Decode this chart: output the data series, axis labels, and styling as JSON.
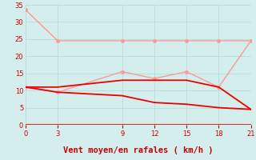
{
  "xlabel": "Vent moyen/en rafales ( km/h )",
  "xlim": [
    0,
    21
  ],
  "ylim": [
    0,
    35
  ],
  "xticks": [
    0,
    3,
    9,
    12,
    15,
    18,
    21
  ],
  "yticks": [
    0,
    5,
    10,
    15,
    20,
    25,
    30,
    35
  ],
  "background_color": "#d4eeed",
  "grid_color": "#b8dcda",
  "lines": [
    {
      "x": [
        0,
        3,
        9,
        12,
        15,
        18,
        21
      ],
      "y": [
        33.5,
        24.5,
        24.5,
        24.5,
        24.5,
        24.5,
        24.5
      ],
      "color": "#ff9999",
      "lw": 1.0,
      "marker": "o",
      "ms": 2.5
    },
    {
      "x": [
        0,
        3,
        9,
        12,
        15,
        18,
        21
      ],
      "y": [
        11,
        9.5,
        15.5,
        13.5,
        15.5,
        11,
        24.5
      ],
      "color": "#ff9999",
      "lw": 1.0,
      "marker": "o",
      "ms": 2.5
    },
    {
      "x": [
        0,
        3,
        9,
        12,
        15,
        18,
        21
      ],
      "y": [
        11,
        11,
        13,
        13,
        13,
        11,
        4.5
      ],
      "color": "#ee0000",
      "lw": 1.3,
      "marker": null,
      "ms": 0
    },
    {
      "x": [
        0,
        3,
        9,
        12,
        15,
        18,
        21
      ],
      "y": [
        11,
        9.5,
        8.5,
        6.5,
        6.0,
        5.0,
        4.5
      ],
      "color": "#ee0000",
      "lw": 1.3,
      "marker": null,
      "ms": 0
    }
  ],
  "tick_color": "#cc0000",
  "tick_fontsize": 6,
  "xlabel_fontsize": 7.5,
  "xlabel_color": "#cc0000",
  "xbaseline_color": "#ee0000",
  "arrow_color": "#cc0000"
}
